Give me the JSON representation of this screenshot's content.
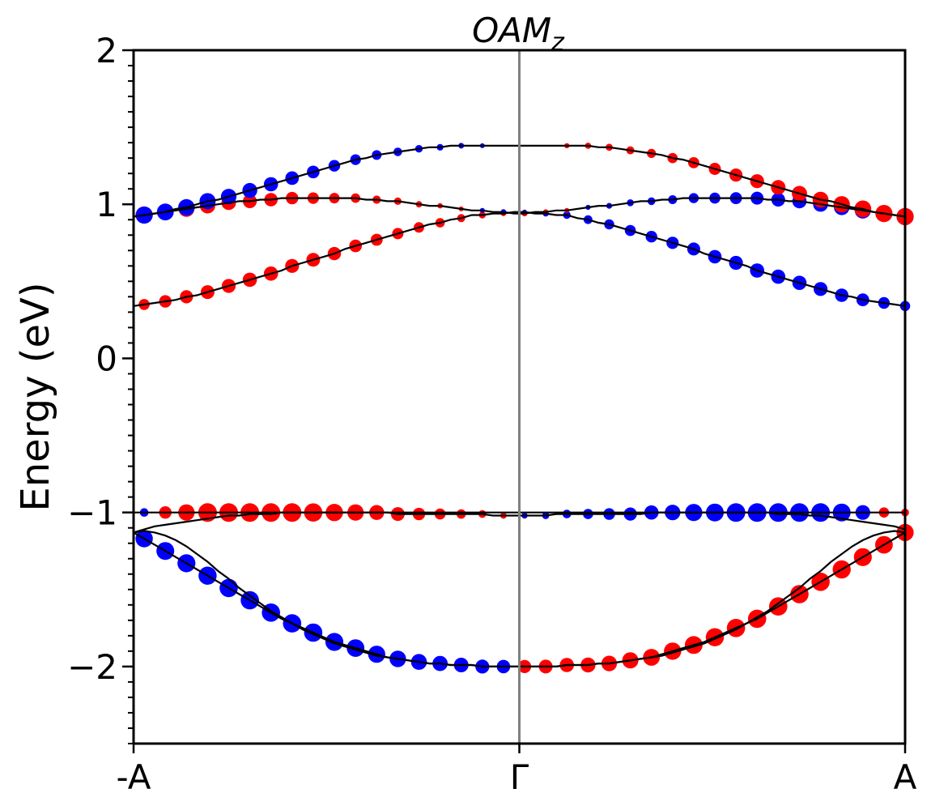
{
  "chart_data": {
    "type": "scatter",
    "title_main": "OAM",
    "title_sub": "z",
    "ylabel": "Energy (eV)",
    "xlabel": "",
    "ylim": [
      -2.5,
      2.0
    ],
    "xlim": [
      -1,
      1
    ],
    "grid": false,
    "legend": "none",
    "xticks": [
      {
        "value": -1,
        "label": "-A"
      },
      {
        "value": 0,
        "label": "Γ"
      },
      {
        "value": 1,
        "label": "A"
      }
    ],
    "yticks": [
      {
        "value": 2,
        "label": "2"
      },
      {
        "value": 1,
        "label": "1"
      },
      {
        "value": 0,
        "label": "0"
      },
      {
        "value": -1,
        "label": "−1"
      },
      {
        "value": -2,
        "label": "−2"
      }
    ],
    "vertical_line": {
      "x": 0,
      "color": "#808080"
    },
    "colors": {
      "positive": "#ff0000",
      "negative": "#0000ff",
      "band_line": "#000000"
    },
    "bands": [
      {
        "id": "c1",
        "energies": [
          0.34,
          0.35,
          0.36,
          0.37,
          0.38,
          0.4,
          0.41,
          0.43,
          0.45,
          0.47,
          0.49,
          0.51,
          0.53,
          0.55,
          0.57,
          0.6,
          0.62,
          0.64,
          0.66,
          0.68,
          0.71,
          0.73,
          0.75,
          0.77,
          0.79,
          0.81,
          0.83,
          0.85,
          0.87,
          0.88,
          0.9,
          0.91,
          0.93,
          0.93,
          0.94,
          0.94,
          0.95,
          0.95,
          0.94,
          0.94,
          0.93,
          0.93,
          0.91,
          0.9,
          0.88,
          0.87,
          0.85,
          0.83,
          0.81,
          0.79,
          0.77,
          0.75,
          0.73,
          0.71,
          0.68,
          0.66,
          0.64,
          0.62,
          0.6,
          0.57,
          0.55,
          0.53,
          0.51,
          0.49,
          0.47,
          0.45,
          0.43,
          0.41,
          0.4,
          0.38,
          0.37,
          0.36,
          0.35,
          0.34
        ],
        "weights": [
          0.45,
          0.5,
          0.55,
          0.6,
          0.62,
          0.64,
          0.66,
          0.68,
          0.7,
          0.7,
          0.72,
          0.72,
          0.72,
          0.72,
          0.72,
          0.7,
          0.7,
          0.68,
          0.66,
          0.65,
          0.63,
          0.61,
          0.59,
          0.57,
          0.55,
          0.53,
          0.5,
          0.47,
          0.44,
          0.4,
          0.36,
          0.32,
          0.28,
          0.23,
          0.18,
          0.14,
          0.1,
          -0.1,
          -0.14,
          -0.18,
          -0.23,
          -0.28,
          -0.32,
          -0.36,
          -0.4,
          -0.44,
          -0.47,
          -0.5,
          -0.53,
          -0.55,
          -0.57,
          -0.59,
          -0.61,
          -0.63,
          -0.65,
          -0.66,
          -0.68,
          -0.7,
          -0.7,
          -0.72,
          -0.72,
          -0.72,
          -0.72,
          -0.72,
          -0.7,
          -0.7,
          -0.68,
          -0.66,
          -0.64,
          -0.62,
          -0.6,
          -0.55,
          -0.5,
          -0.45
        ]
      },
      {
        "id": "c2",
        "energies": [
          0.92,
          0.93,
          0.94,
          0.95,
          0.96,
          0.97,
          0.98,
          0.99,
          1.0,
          1.01,
          1.02,
          1.02,
          1.03,
          1.03,
          1.04,
          1.04,
          1.04,
          1.04,
          1.04,
          1.04,
          1.04,
          1.04,
          1.03,
          1.03,
          1.02,
          1.02,
          1.01,
          1.0,
          0.99,
          0.99,
          0.98,
          0.97,
          0.96,
          0.96,
          0.95,
          0.95,
          0.94,
          0.94,
          0.95,
          0.95,
          0.96,
          0.96,
          0.97,
          0.98,
          0.99,
          0.99,
          1.0,
          1.01,
          1.02,
          1.02,
          1.03,
          1.03,
          1.04,
          1.04,
          1.04,
          1.04,
          1.04,
          1.04,
          1.04,
          1.04,
          1.03,
          1.03,
          1.02,
          1.02,
          1.01,
          1.0,
          0.99,
          0.98,
          0.97,
          0.96,
          0.95,
          0.94,
          0.93,
          0.92
        ],
        "weights": [
          0.9,
          0.9,
          0.88,
          0.86,
          0.84,
          0.82,
          0.8,
          0.78,
          0.76,
          0.74,
          0.72,
          0.7,
          0.68,
          0.66,
          0.63,
          0.6,
          0.57,
          0.54,
          0.5,
          0.47,
          0.44,
          0.4,
          0.37,
          0.33,
          0.3,
          0.27,
          0.24,
          0.2,
          0.17,
          0.14,
          0.12,
          0.1,
          -0.1,
          -0.12,
          -0.14,
          -0.15,
          -0.16,
          0.16,
          0.15,
          0.14,
          0.12,
          0.1,
          -0.1,
          -0.12,
          -0.14,
          -0.17,
          -0.2,
          -0.24,
          -0.27,
          -0.3,
          -0.33,
          -0.37,
          -0.4,
          -0.44,
          -0.47,
          -0.5,
          -0.54,
          -0.57,
          -0.6,
          -0.63,
          -0.66,
          -0.68,
          -0.7,
          -0.72,
          -0.74,
          -0.76,
          -0.78,
          -0.8,
          -0.82,
          -0.84,
          -0.86,
          -0.88,
          -0.9,
          -0.9
        ]
      },
      {
        "id": "c3",
        "energies": [
          0.92,
          0.93,
          0.94,
          0.95,
          0.97,
          0.98,
          1.0,
          1.02,
          1.03,
          1.05,
          1.07,
          1.09,
          1.11,
          1.13,
          1.15,
          1.17,
          1.19,
          1.21,
          1.23,
          1.25,
          1.27,
          1.29,
          1.3,
          1.32,
          1.33,
          1.34,
          1.35,
          1.36,
          1.37,
          1.37,
          1.38,
          1.38,
          1.38,
          1.38,
          1.38,
          1.38,
          1.38,
          1.38,
          1.38,
          1.38,
          1.38,
          1.38,
          1.38,
          1.38,
          1.37,
          1.37,
          1.36,
          1.35,
          1.34,
          1.33,
          1.32,
          1.3,
          1.29,
          1.27,
          1.25,
          1.23,
          1.21,
          1.19,
          1.17,
          1.15,
          1.13,
          1.11,
          1.09,
          1.07,
          1.05,
          1.03,
          1.02,
          1.0,
          0.98,
          0.97,
          0.95,
          0.94,
          0.93,
          0.92
        ],
        "weights": [
          -0.9,
          -0.9,
          -0.9,
          -0.88,
          -0.88,
          -0.86,
          -0.85,
          -0.84,
          -0.82,
          -0.8,
          -0.78,
          -0.76,
          -0.74,
          -0.72,
          -0.7,
          -0.67,
          -0.64,
          -0.61,
          -0.58,
          -0.55,
          -0.52,
          -0.48,
          -0.45,
          -0.42,
          -0.38,
          -0.35,
          -0.32,
          -0.28,
          -0.25,
          -0.22,
          -0.19,
          -0.16,
          -0.13,
          -0.1,
          0,
          0,
          0,
          0,
          0,
          0,
          0.1,
          0.13,
          0.16,
          0.19,
          0.22,
          0.25,
          0.28,
          0.32,
          0.35,
          0.38,
          0.42,
          0.45,
          0.48,
          0.52,
          0.55,
          0.58,
          0.61,
          0.64,
          0.67,
          0.7,
          0.72,
          0.74,
          0.76,
          0.78,
          0.8,
          0.82,
          0.84,
          0.85,
          0.86,
          0.88,
          0.88,
          0.9,
          0.9,
          0.9
        ]
      },
      {
        "id": "v1",
        "energies": [
          -1.0,
          -1.0,
          -1.0,
          -1.0,
          -1.0,
          -1.0,
          -1.0,
          -1.0,
          -1.0,
          -1.0,
          -1.0,
          -1.0,
          -1.0,
          -1.0,
          -1.0,
          -1.0,
          -1.0,
          -1.0,
          -1.0,
          -1.0,
          -1.0,
          -1.0,
          -1.0,
          -1.0,
          -1.0,
          -1.01,
          -1.01,
          -1.01,
          -1.01,
          -1.01,
          -1.01,
          -1.01,
          -1.01,
          -1.01,
          -1.02,
          -1.02,
          -1.02,
          -1.02,
          -1.02,
          -1.02,
          -1.01,
          -1.01,
          -1.01,
          -1.01,
          -1.01,
          -1.01,
          -1.01,
          -1.01,
          -1.01,
          -1.0,
          -1.0,
          -1.0,
          -1.0,
          -1.0,
          -1.0,
          -1.0,
          -1.0,
          -1.0,
          -1.0,
          -1.0,
          -1.0,
          -1.0,
          -1.0,
          -1.0,
          -1.0,
          -1.0,
          -1.0,
          -1.0,
          -1.0,
          -1.0,
          -1.0,
          -1.0,
          -1.0,
          -1.0
        ],
        "weights": [
          -0.3,
          -0.35,
          -0.45,
          0.6,
          0.75,
          0.85,
          0.95,
          1.0,
          1.0,
          1.0,
          1.0,
          1.0,
          1.0,
          1.0,
          1.0,
          1.0,
          1.0,
          0.98,
          0.95,
          0.92,
          0.9,
          0.85,
          0.8,
          0.76,
          0.72,
          0.68,
          0.64,
          0.6,
          0.55,
          0.5,
          0.45,
          0.4,
          0.35,
          0.3,
          0.25,
          0.2,
          0.18,
          -0.18,
          -0.2,
          -0.25,
          -0.3,
          -0.35,
          -0.4,
          -0.45,
          -0.5,
          -0.55,
          -0.6,
          -0.64,
          -0.68,
          -0.72,
          -0.76,
          -0.8,
          -0.85,
          -0.9,
          -0.92,
          -0.95,
          -0.98,
          -1.0,
          -1.0,
          -1.0,
          -1.0,
          -1.0,
          -1.0,
          -1.0,
          -1.0,
          -1.0,
          -1.0,
          -0.95,
          -0.85,
          -0.75,
          -0.6,
          0.45,
          0.35,
          0.3
        ]
      },
      {
        "id": "v2",
        "energies": [
          -1.13,
          -1.11,
          -1.09,
          -1.08,
          -1.07,
          -1.06,
          -1.05,
          -1.04,
          -1.03,
          -1.02,
          -1.02,
          -1.01,
          -1.01,
          -1.01,
          -1.0,
          -1.0,
          -1.0,
          -1.0,
          -1.0,
          -1.0,
          -1.0,
          -1.0,
          -1.0,
          -1.0,
          -1.0,
          -1.0,
          -1.0,
          -1.0,
          -1.0,
          -1.0,
          -1.0,
          -1.0,
          -1.0,
          -1.0,
          -1.0,
          -1.0,
          -1.0,
          -1.0,
          -1.0,
          -1.0,
          -1.0,
          -1.0,
          -1.0,
          -1.0,
          -1.0,
          -1.0,
          -1.0,
          -1.0,
          -1.0,
          -1.0,
          -1.0,
          -1.0,
          -1.0,
          -1.0,
          -1.0,
          -1.0,
          -1.0,
          -1.0,
          -1.0,
          -1.0,
          -1.0,
          -1.01,
          -1.01,
          -1.01,
          -1.02,
          -1.02,
          -1.03,
          -1.04,
          -1.05,
          -1.06,
          -1.07,
          -1.08,
          -1.09,
          -1.11
        ],
        "weights": []
      },
      {
        "id": "v3",
        "energies": [
          -1.13,
          -1.17,
          -1.21,
          -1.25,
          -1.29,
          -1.33,
          -1.37,
          -1.41,
          -1.45,
          -1.49,
          -1.53,
          -1.57,
          -1.61,
          -1.65,
          -1.69,
          -1.72,
          -1.75,
          -1.78,
          -1.81,
          -1.84,
          -1.86,
          -1.88,
          -1.9,
          -1.92,
          -1.94,
          -1.95,
          -1.96,
          -1.97,
          -1.98,
          -1.98,
          -1.99,
          -1.99,
          -1.99,
          -2.0,
          -2.0,
          -2.0,
          -2.0,
          -2.0,
          -2.0,
          -2.0,
          -2.0,
          -1.99,
          -1.99,
          -1.99,
          -1.98,
          -1.98,
          -1.97,
          -1.96,
          -1.95,
          -1.94,
          -1.92,
          -1.9,
          -1.88,
          -1.86,
          -1.84,
          -1.81,
          -1.78,
          -1.75,
          -1.72,
          -1.69,
          -1.65,
          -1.61,
          -1.57,
          -1.53,
          -1.49,
          -1.45,
          -1.41,
          -1.37,
          -1.33,
          -1.29,
          -1.25,
          -1.21,
          -1.17,
          -1.13
        ],
        "weights": [
          -0.9,
          -0.92,
          -0.94,
          -0.95,
          -0.96,
          -0.96,
          -0.97,
          -0.97,
          -0.98,
          -0.98,
          -0.98,
          -0.98,
          -0.98,
          -0.98,
          -0.98,
          -0.98,
          -0.98,
          -0.98,
          -0.97,
          -0.96,
          -0.95,
          -0.94,
          -0.92,
          -0.9,
          -0.88,
          -0.86,
          -0.84,
          -0.82,
          -0.8,
          -0.78,
          -0.76,
          -0.74,
          -0.72,
          -0.7,
          -0.68,
          -0.66,
          -0.64,
          0.64,
          0.66,
          0.68,
          0.7,
          0.72,
          0.74,
          0.76,
          0.78,
          0.8,
          0.82,
          0.84,
          0.86,
          0.88,
          0.9,
          0.92,
          0.94,
          0.95,
          0.96,
          0.97,
          0.98,
          0.98,
          0.98,
          0.98,
          0.98,
          0.98,
          0.98,
          0.98,
          0.98,
          0.98,
          0.97,
          0.97,
          0.96,
          0.96,
          0.95,
          0.94,
          0.92,
          0.9
        ]
      },
      {
        "id": "v4",
        "energies": [
          -1.13,
          -1.12,
          -1.13,
          -1.15,
          -1.18,
          -1.22,
          -1.27,
          -1.32,
          -1.38,
          -1.43,
          -1.49,
          -1.54,
          -1.59,
          -1.64,
          -1.68,
          -1.72,
          -1.76,
          -1.79,
          -1.82,
          -1.85,
          -1.87,
          -1.89,
          -1.91,
          -1.93,
          -1.94,
          -1.95,
          -1.96,
          -1.97,
          -1.98,
          -1.98,
          -1.99,
          -1.99,
          -1.99,
          -2.0,
          -2.0,
          -2.0,
          -2.0,
          -2.0,
          -2.0,
          -2.0,
          -2.0,
          -1.99,
          -1.99,
          -1.99,
          -1.98,
          -1.98,
          -1.97,
          -1.96,
          -1.95,
          -1.94,
          -1.93,
          -1.91,
          -1.89,
          -1.87,
          -1.85,
          -1.82,
          -1.79,
          -1.76,
          -1.72,
          -1.68,
          -1.64,
          -1.59,
          -1.54,
          -1.49,
          -1.43,
          -1.38,
          -1.32,
          -1.27,
          -1.22,
          -1.18,
          -1.15,
          -1.13,
          -1.12,
          -1.13
        ],
        "weights": []
      }
    ]
  }
}
